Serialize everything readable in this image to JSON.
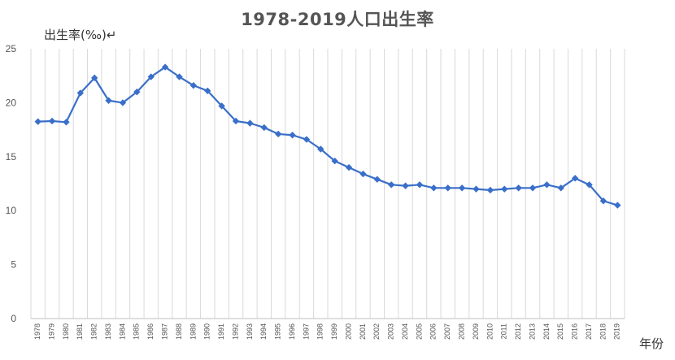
{
  "chart_data": {
    "type": "line",
    "title": "1978-2019人口出生率",
    "ylabel": "出生率(‰)↵",
    "xlabel": "年份",
    "ylim": [
      0,
      25
    ],
    "yticks": [
      0,
      5,
      10,
      15,
      20,
      25
    ],
    "grid": "vertical",
    "legend": "none",
    "color": "#3a6fc9",
    "x": [
      "1978",
      "1979",
      "1980",
      "1981",
      "1982",
      "1983",
      "1984",
      "1985",
      "1986",
      "1987",
      "1988",
      "1989",
      "1990",
      "1991",
      "1992",
      "1993",
      "1994",
      "1995",
      "1996",
      "1997",
      "1998",
      "1999",
      "2000",
      "2001",
      "2002",
      "2003",
      "2004",
      "2005",
      "2006",
      "2007",
      "2008",
      "2009",
      "2010",
      "2011",
      "2012",
      "2013",
      "2014",
      "2015",
      "2016",
      "2017",
      "2018",
      "2019"
    ],
    "series": [
      {
        "values": [
          18.25,
          18.3,
          18.2,
          20.9,
          22.3,
          20.2,
          20.0,
          21.0,
          22.4,
          23.3,
          22.4,
          21.6,
          21.1,
          19.7,
          18.3,
          18.1,
          17.7,
          17.1,
          17.0,
          16.6,
          15.7,
          14.6,
          14.0,
          13.4,
          12.9,
          12.4,
          12.3,
          12.4,
          12.1,
          12.1,
          12.1,
          12.0,
          11.9,
          12.0,
          12.1,
          12.1,
          12.4,
          12.1,
          13.0,
          12.4,
          10.9,
          10.5
        ]
      }
    ]
  }
}
